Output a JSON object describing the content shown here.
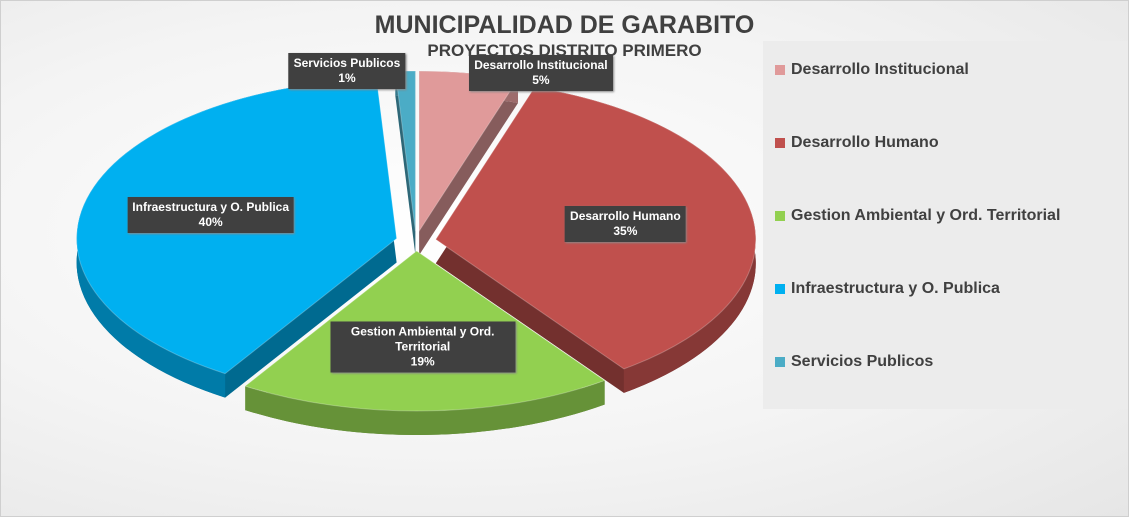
{
  "chart_data": {
    "type": "pie3d",
    "title": "MUNICIPALIDAD DE GARABITO",
    "subtitle": "PROYECTOS DISTRITO PRIMERO",
    "categories": [
      "Desarrollo Institucional",
      "Desarrollo Humano",
      "Gestion Ambiental y Ord. Territorial",
      "Infraestructura y O. Publica",
      "Servicios Publicos"
    ],
    "values": [
      5,
      35,
      19,
      40,
      1
    ],
    "value_labels": [
      "5%",
      "35%",
      "19%",
      "40%",
      "1%"
    ],
    "colors": [
      "#e09a9a",
      "#c0504d",
      "#92d050",
      "#00b0f0",
      "#4bacc6"
    ],
    "legend": "right"
  }
}
